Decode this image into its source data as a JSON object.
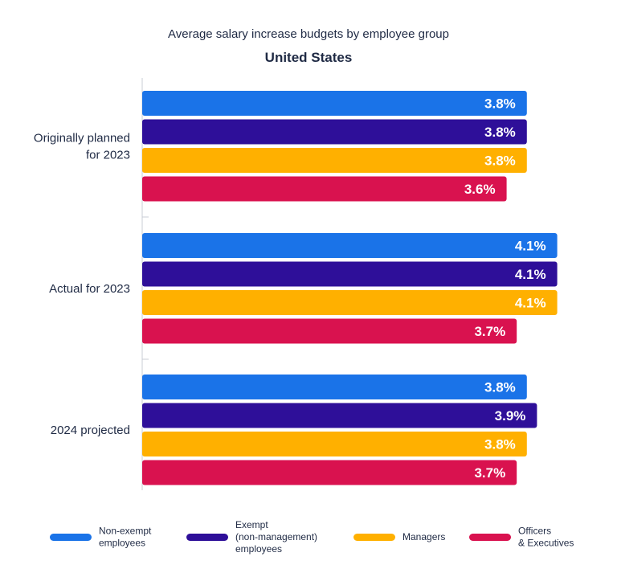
{
  "chart_data": {
    "type": "bar",
    "orientation": "horizontal",
    "title": "Average salary increase budgets by employee group",
    "subtitle": "United States",
    "categories": [
      [
        "Originally planned",
        "for 2023"
      ],
      [
        "Actual for 2023"
      ],
      [
        "2024 projected"
      ]
    ],
    "series": [
      {
        "name": [
          "Non-exempt",
          "employees"
        ],
        "color": "#1a73e8",
        "values": [
          3.8,
          4.1,
          3.8
        ]
      },
      {
        "name": [
          "Exempt",
          "(non-management)",
          "employees"
        ],
        "color": "#2e0f99",
        "values": [
          3.8,
          4.1,
          3.9
        ]
      },
      {
        "name": [
          "Managers"
        ],
        "color": "#ffb000",
        "values": [
          3.8,
          4.1,
          3.8
        ]
      },
      {
        "name": [
          "Officers",
          "& Executives"
        ],
        "color": "#d9124f",
        "values": [
          3.6,
          3.7,
          3.7
        ]
      }
    ],
    "value_suffix": "%",
    "xlim": [
      0,
      4.2
    ],
    "grid": false,
    "legend": "bottom"
  }
}
